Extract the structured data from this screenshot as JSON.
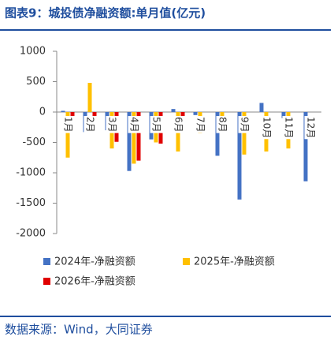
{
  "chart_data": {
    "type": "bar",
    "title": "图表9：城投债净融资额:单月值(亿元)",
    "source": "数据来源：Wind，大同证券",
    "categories": [
      "1月",
      "2月",
      "3月",
      "4月",
      "5月",
      "6月",
      "7月",
      "8月",
      "9月",
      "10月",
      "11月",
      "12月"
    ],
    "series": [
      {
        "name": "2024年-净融资额",
        "color": "#4472c4",
        "values": [
          20,
          -330,
          -300,
          -970,
          -450,
          50,
          -50,
          -720,
          -1440,
          150,
          -100,
          -1140
        ]
      },
      {
        "name": "2025年-净融资额",
        "color": "#ffc000",
        "values": [
          -750,
          480,
          -600,
          -850,
          -500,
          -650,
          -350,
          -150,
          -700,
          -650,
          -600,
          null
        ]
      },
      {
        "name": "2026年-净融资额",
        "color": "#e00000",
        "values": [
          -80,
          -130,
          -490,
          -800,
          -520,
          -230,
          null,
          null,
          null,
          null,
          null,
          null
        ]
      }
    ],
    "ylim": [
      -2000,
      1000
    ],
    "yticks": [
      1000,
      500,
      0,
      -500,
      -1000,
      -1500,
      -2000
    ]
  }
}
